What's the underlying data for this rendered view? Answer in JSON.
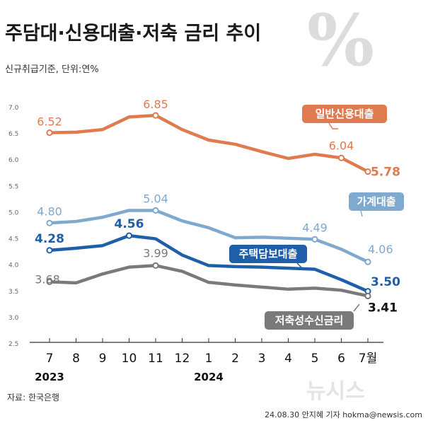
{
  "title": "주담대·신용대출·저축 금리 추이",
  "subtitle": "신규취급기준, 단위:연%",
  "source": "자료: 한국은행",
  "credit": "24.08.30 안지혜 기자 hokma@newsis.com",
  "watermark": "뉴시스",
  "decor_symbol": "%",
  "chart_data": {
    "type": "line",
    "categories": [
      "7",
      "8",
      "9",
      "10",
      "11",
      "12",
      "1",
      "2",
      "3",
      "4",
      "5",
      "6",
      "7월"
    ],
    "year_labels": [
      {
        "text": "2023",
        "category_index": 0
      },
      {
        "text": "2024",
        "category_index": 6
      }
    ],
    "ylim": [
      2.5,
      7.0
    ],
    "yticks": [
      "2.5",
      "3.0",
      "3.5",
      "4.0",
      "4.5",
      "5.0",
      "5.5",
      "6.0",
      "6.5",
      "7.0"
    ],
    "grid": false,
    "series": [
      {
        "name": "일반신용대출",
        "color": "#e07a4f",
        "values": [
          6.52,
          6.53,
          6.58,
          6.82,
          6.85,
          6.58,
          6.38,
          6.3,
          6.16,
          6.03,
          6.11,
          6.04,
          5.78
        ],
        "labels": [
          {
            "i": 0,
            "text": "6.52"
          },
          {
            "i": 4,
            "text": "6.85"
          },
          {
            "i": 11,
            "text": "6.04"
          },
          {
            "i": 12,
            "text": "5.78",
            "bold": true
          }
        ],
        "markers": [
          0,
          4,
          11,
          12
        ],
        "tag": {
          "text": "일반신용대출"
        }
      },
      {
        "name": "가계대출",
        "color": "#7fa9cf",
        "values": [
          4.8,
          4.83,
          4.91,
          5.04,
          5.04,
          4.84,
          4.71,
          4.52,
          4.53,
          4.51,
          4.49,
          4.3,
          4.06
        ],
        "labels": [
          {
            "i": 0,
            "text": "4.80"
          },
          {
            "i": 4,
            "text": "5.04"
          },
          {
            "i": 10,
            "text": "4.49"
          },
          {
            "i": 12,
            "text": "4.06"
          }
        ],
        "markers": [
          0,
          4,
          10,
          12
        ],
        "tag": {
          "text": "가계대출"
        }
      },
      {
        "name": "주택담보대출",
        "color": "#1f5ea8",
        "values": [
          4.28,
          4.32,
          4.37,
          4.56,
          4.5,
          4.19,
          3.99,
          3.97,
          3.96,
          3.94,
          3.92,
          3.72,
          3.5
        ],
        "labels": [
          {
            "i": 0,
            "text": "4.28",
            "bold": true
          },
          {
            "i": 3,
            "text": "4.56",
            "bold": true
          },
          {
            "i": 12,
            "text": "3.50",
            "bold": true
          }
        ],
        "markers": [
          0,
          3,
          12
        ],
        "tag": {
          "text": "주택담보대출"
        }
      },
      {
        "name": "저축성수신금리",
        "color": "#7a7a7a",
        "values": [
          3.68,
          3.66,
          3.83,
          3.96,
          3.99,
          3.88,
          3.67,
          3.62,
          3.58,
          3.54,
          3.56,
          3.52,
          3.41
        ],
        "labels": [
          {
            "i": 0,
            "text": "3.68"
          },
          {
            "i": 4,
            "text": "3.99"
          },
          {
            "i": 12,
            "text": "3.41",
            "bold": true
          }
        ],
        "markers": [
          0,
          4,
          12
        ],
        "tag": {
          "text": "저축성수신금리"
        }
      }
    ]
  }
}
